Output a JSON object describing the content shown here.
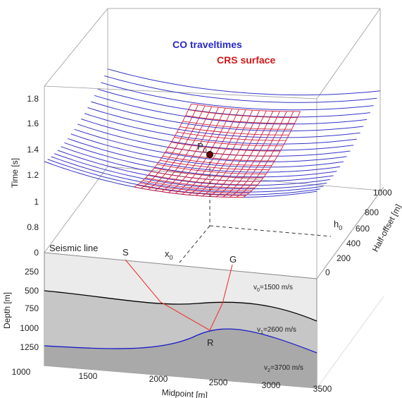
{
  "labels": {
    "co": "CO traveltimes",
    "crs": "CRS surface",
    "p": "P",
    "p_sub": "0",
    "seismic_line": "Seismic line",
    "s": "S",
    "g": "G",
    "r": "R",
    "x": "x",
    "x_sub": "0",
    "h": "h",
    "h_sub": "0"
  },
  "velocities": [
    {
      "v": "v",
      "sub": "0",
      "rest": "=1500 m/s"
    },
    {
      "v": "v",
      "sub": "1",
      "rest": "=2600 m/s"
    },
    {
      "v": "v",
      "sub": "2",
      "rest": "=3700 m/s"
    }
  ],
  "axes": {
    "time": {
      "title": "Time [s]",
      "ticks": [
        "0",
        "0.8",
        "1",
        "1.2",
        "1.4",
        "1.6",
        "1.8"
      ]
    },
    "depth": {
      "title": "Depth [m]",
      "ticks": [
        "250",
        "500",
        "750",
        "1000",
        "1250"
      ]
    },
    "midpoint": {
      "title": "Midpoint [m]",
      "ticks": [
        "1000",
        "1500",
        "2000",
        "2500",
        "3000",
        "3500"
      ]
    },
    "offset": {
      "title": "Half-offset [m]",
      "ticks": [
        "0",
        "200",
        "400",
        "600",
        "800",
        "1000"
      ]
    }
  }
}
